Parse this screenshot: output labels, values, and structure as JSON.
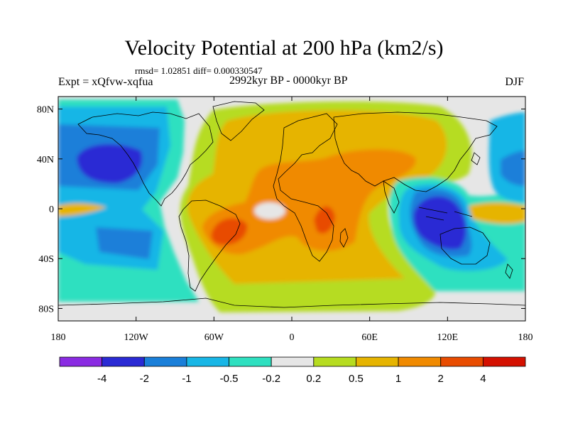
{
  "title": "Velocity Potential at 200 hPa (km2/s)",
  "stats": "rmsd= 1.02851 diff= 0.000330547",
  "experiment": "Expt = xQfvw-xqfua",
  "period": "2992kyr BP - 0000kyr BP",
  "season": "DJF",
  "y_ticks": [
    {
      "lat": 80,
      "label": "80N"
    },
    {
      "lat": 40,
      "label": "40N"
    },
    {
      "lat": 0,
      "label": "0"
    },
    {
      "lat": -40,
      "label": "40S"
    },
    {
      "lat": -80,
      "label": "80S"
    }
  ],
  "x_ticks": [
    {
      "lon": -180,
      "label": "180"
    },
    {
      "lon": -120,
      "label": "120W"
    },
    {
      "lon": -60,
      "label": "60W"
    },
    {
      "lon": 0,
      "label": "0"
    },
    {
      "lon": 60,
      "label": "60E"
    },
    {
      "lon": 120,
      "label": "120E"
    },
    {
      "lon": 180,
      "label": "180"
    }
  ],
  "colorbar": {
    "colors": [
      "#8a2be2",
      "#2a2ad4",
      "#1a7fd9",
      "#18b6e6",
      "#2ee0c0",
      "#e6e6e6",
      "#b6dc20",
      "#e6b400",
      "#f08a00",
      "#e84c00",
      "#d41000"
    ],
    "labels": [
      "-4",
      "-2",
      "-1",
      "-0.5",
      "-0.2",
      "0.2",
      "0.5",
      "1",
      "2",
      "4"
    ]
  },
  "colors": {
    "background": "#e6e6e6",
    "coast": "#000000"
  }
}
